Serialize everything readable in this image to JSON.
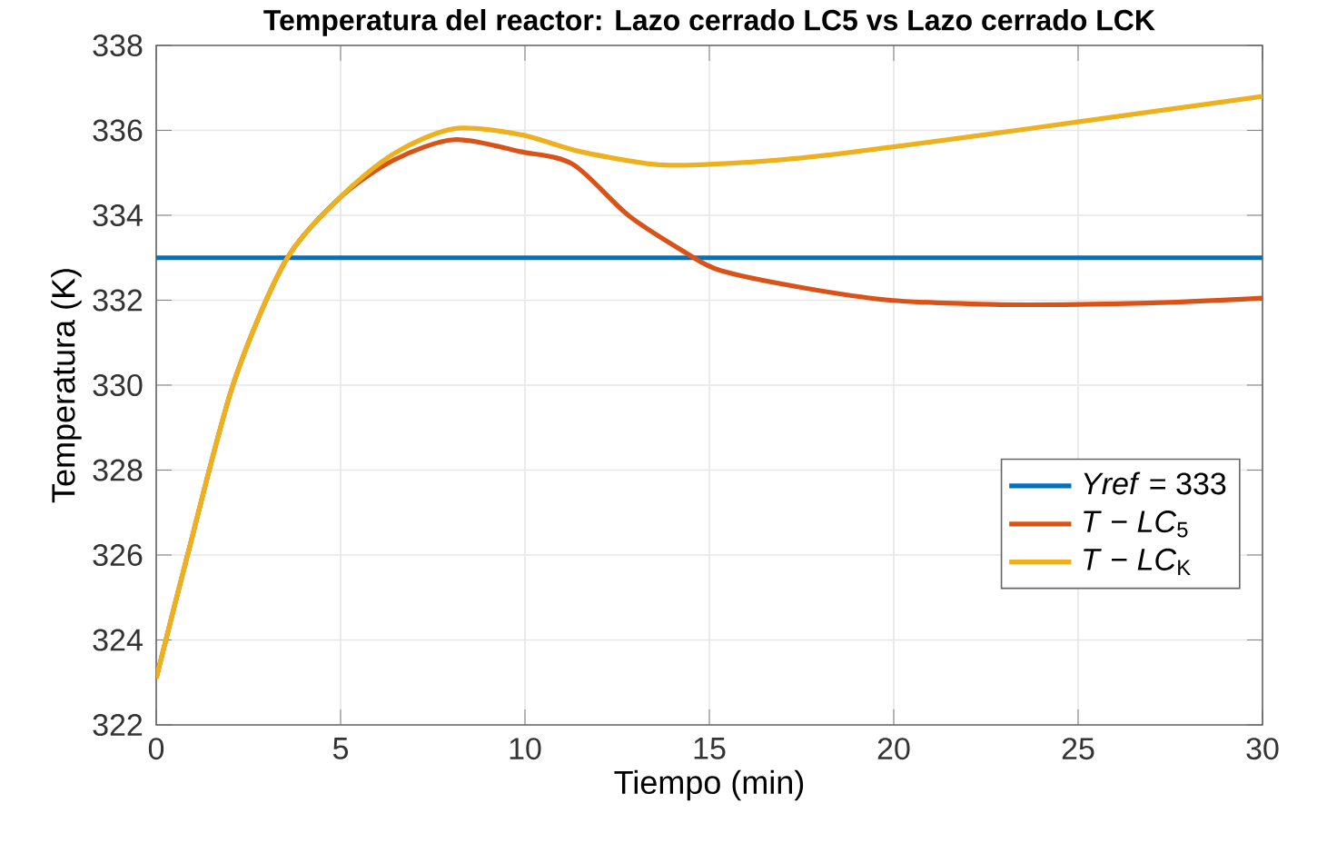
{
  "chart_data": {
    "type": "line",
    "title": "Temperatura del reactor: Lazo cerrado LC5 vs Lazo cerrado LCK",
    "xlabel": "Tiempo (min)",
    "ylabel": "Temperatura (K)",
    "xlim": [
      0,
      30
    ],
    "ylim": [
      322,
      338
    ],
    "xticks": [
      0,
      5,
      10,
      15,
      20,
      25,
      30
    ],
    "yticks": [
      322,
      324,
      326,
      328,
      330,
      332,
      334,
      336,
      338
    ],
    "grid": true,
    "legend": "bottom right",
    "marker": "none",
    "line_style": "solid",
    "series": [
      {
        "name": "*Yref* = 333",
        "color": "#0072bd",
        "x": [
          0,
          30
        ],
        "values": [
          333,
          333
        ]
      },
      {
        "name": "*T* − *LC*$_{5}$",
        "color": "#d95319",
        "x": [
          0,
          0.85,
          2.08,
          3.49,
          4.96,
          6.44,
          8.08,
          9.87,
          11.3,
          12.8,
          14.3,
          15.3,
          17.5,
          19.9,
          22.7,
          25,
          27.5,
          30
        ],
        "values": [
          323.1,
          326.0,
          330.0,
          332.9,
          334.4,
          335.3,
          335.78,
          335.5,
          335.2,
          334.0,
          333.15,
          332.7,
          332.3,
          332.0,
          331.9,
          331.9,
          331.95,
          332.05
        ]
      },
      {
        "name": "*T* − *LC*$_{K}$",
        "color": "#edb120",
        "x": [
          0,
          0.85,
          2.08,
          3.49,
          4.96,
          6.44,
          8.08,
          9.87,
          11.5,
          13.5,
          15,
          17.5,
          19.9,
          22.5,
          25,
          27.5,
          30
        ],
        "values": [
          323.1,
          326.0,
          330.0,
          332.9,
          334.4,
          335.45,
          336.04,
          335.9,
          335.5,
          335.2,
          335.2,
          335.35,
          335.6,
          335.9,
          336.2,
          336.5,
          336.8
        ]
      }
    ]
  }
}
